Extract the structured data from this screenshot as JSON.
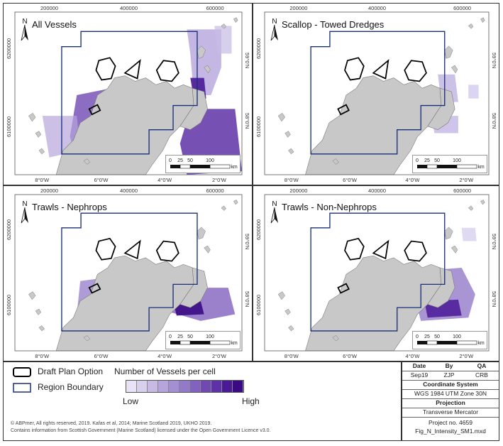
{
  "panels": [
    {
      "title": "All Vessels",
      "x_ticks_top": [
        "200000",
        "400000",
        "600000"
      ],
      "y_ticks_left": [
        "6200000",
        "6100000"
      ],
      "lon_ticks": [
        "8°0'W",
        "6°0'W",
        "4°0'W",
        "2°0'W"
      ],
      "lat_ticks": [
        "59°0'N",
        "58°0'N"
      ]
    },
    {
      "title": "Scallop - Towed Dredges",
      "x_ticks_top": [
        "200000",
        "400000",
        "600000"
      ],
      "y_ticks_left": [
        "6200000",
        "6100000"
      ],
      "lon_ticks": [
        "8°0'W",
        "6°0'W",
        "4°0'W",
        "2°0'W"
      ],
      "lat_ticks": [
        "59°0'N",
        "58°0'N"
      ]
    },
    {
      "title": "Trawls - Nephrops",
      "x_ticks_top": [
        "200000",
        "400000",
        "600000"
      ],
      "y_ticks_left": [
        "6200000",
        "6100000"
      ],
      "lon_ticks": [
        "8°0'W",
        "6°0'W",
        "4°0'W",
        "2°0'W"
      ],
      "lat_ticks": [
        "59°0'N",
        "58°0'N"
      ]
    },
    {
      "title": "Trawls - Non-Nephrops",
      "x_ticks_top": [
        "200000",
        "400000",
        "600000"
      ],
      "y_ticks_left": [
        "6200000",
        "6100000"
      ],
      "lon_ticks": [
        "8°0'W",
        "6°0'W",
        "4°0'W",
        "2°0'W"
      ],
      "lat_ticks": [
        "59°0'N",
        "58°0'N"
      ]
    }
  ],
  "north_label": "N",
  "scale": {
    "labels": [
      "0",
      "25",
      "50",
      "100"
    ],
    "unit": "km"
  },
  "legend": {
    "draft_plan_label": "Draft Plan Option",
    "region_label": "Region Boundary",
    "ramp_title": "Number of Vessels per cell",
    "low_label": "Low",
    "high_label": "High",
    "ramp_colors": [
      "#e8e4f5",
      "#d8d0ef",
      "#c7bbe6",
      "#b6a5dd",
      "#a48fd3",
      "#9379c9",
      "#8262bf",
      "#7049b3",
      "#5e32a6",
      "#4a1a96",
      "#3a0a84"
    ]
  },
  "credits": {
    "line1": "© ABPmer, All rights reserved, 2019. Kafas et al, 2014; Marine Scotland 2019, UKHO 2019.",
    "line2": "Contains information from Scottish Government (Marine Scotland) licensed under the Open Government Licence v3.0."
  },
  "info": {
    "date_h": "Date",
    "by_h": "By",
    "qa_h": "QA",
    "date": "Sep19",
    "by": "ZJP",
    "qa": "CRB",
    "cs_h": "Coordinate System",
    "cs": "WGS 1984 UTM Zone 30N",
    "proj_h": "Projection",
    "proj": "Transverse Mercator",
    "project": "Project no. 4659",
    "file": "Fig_N_Intensity_SM1.mxd"
  },
  "colors": {
    "land": "#c8c8c8",
    "region": "#1a2f7a",
    "plan": "#000000",
    "intensity_dark": "#4a1a96",
    "intensity_light": "#c7bbe6"
  }
}
